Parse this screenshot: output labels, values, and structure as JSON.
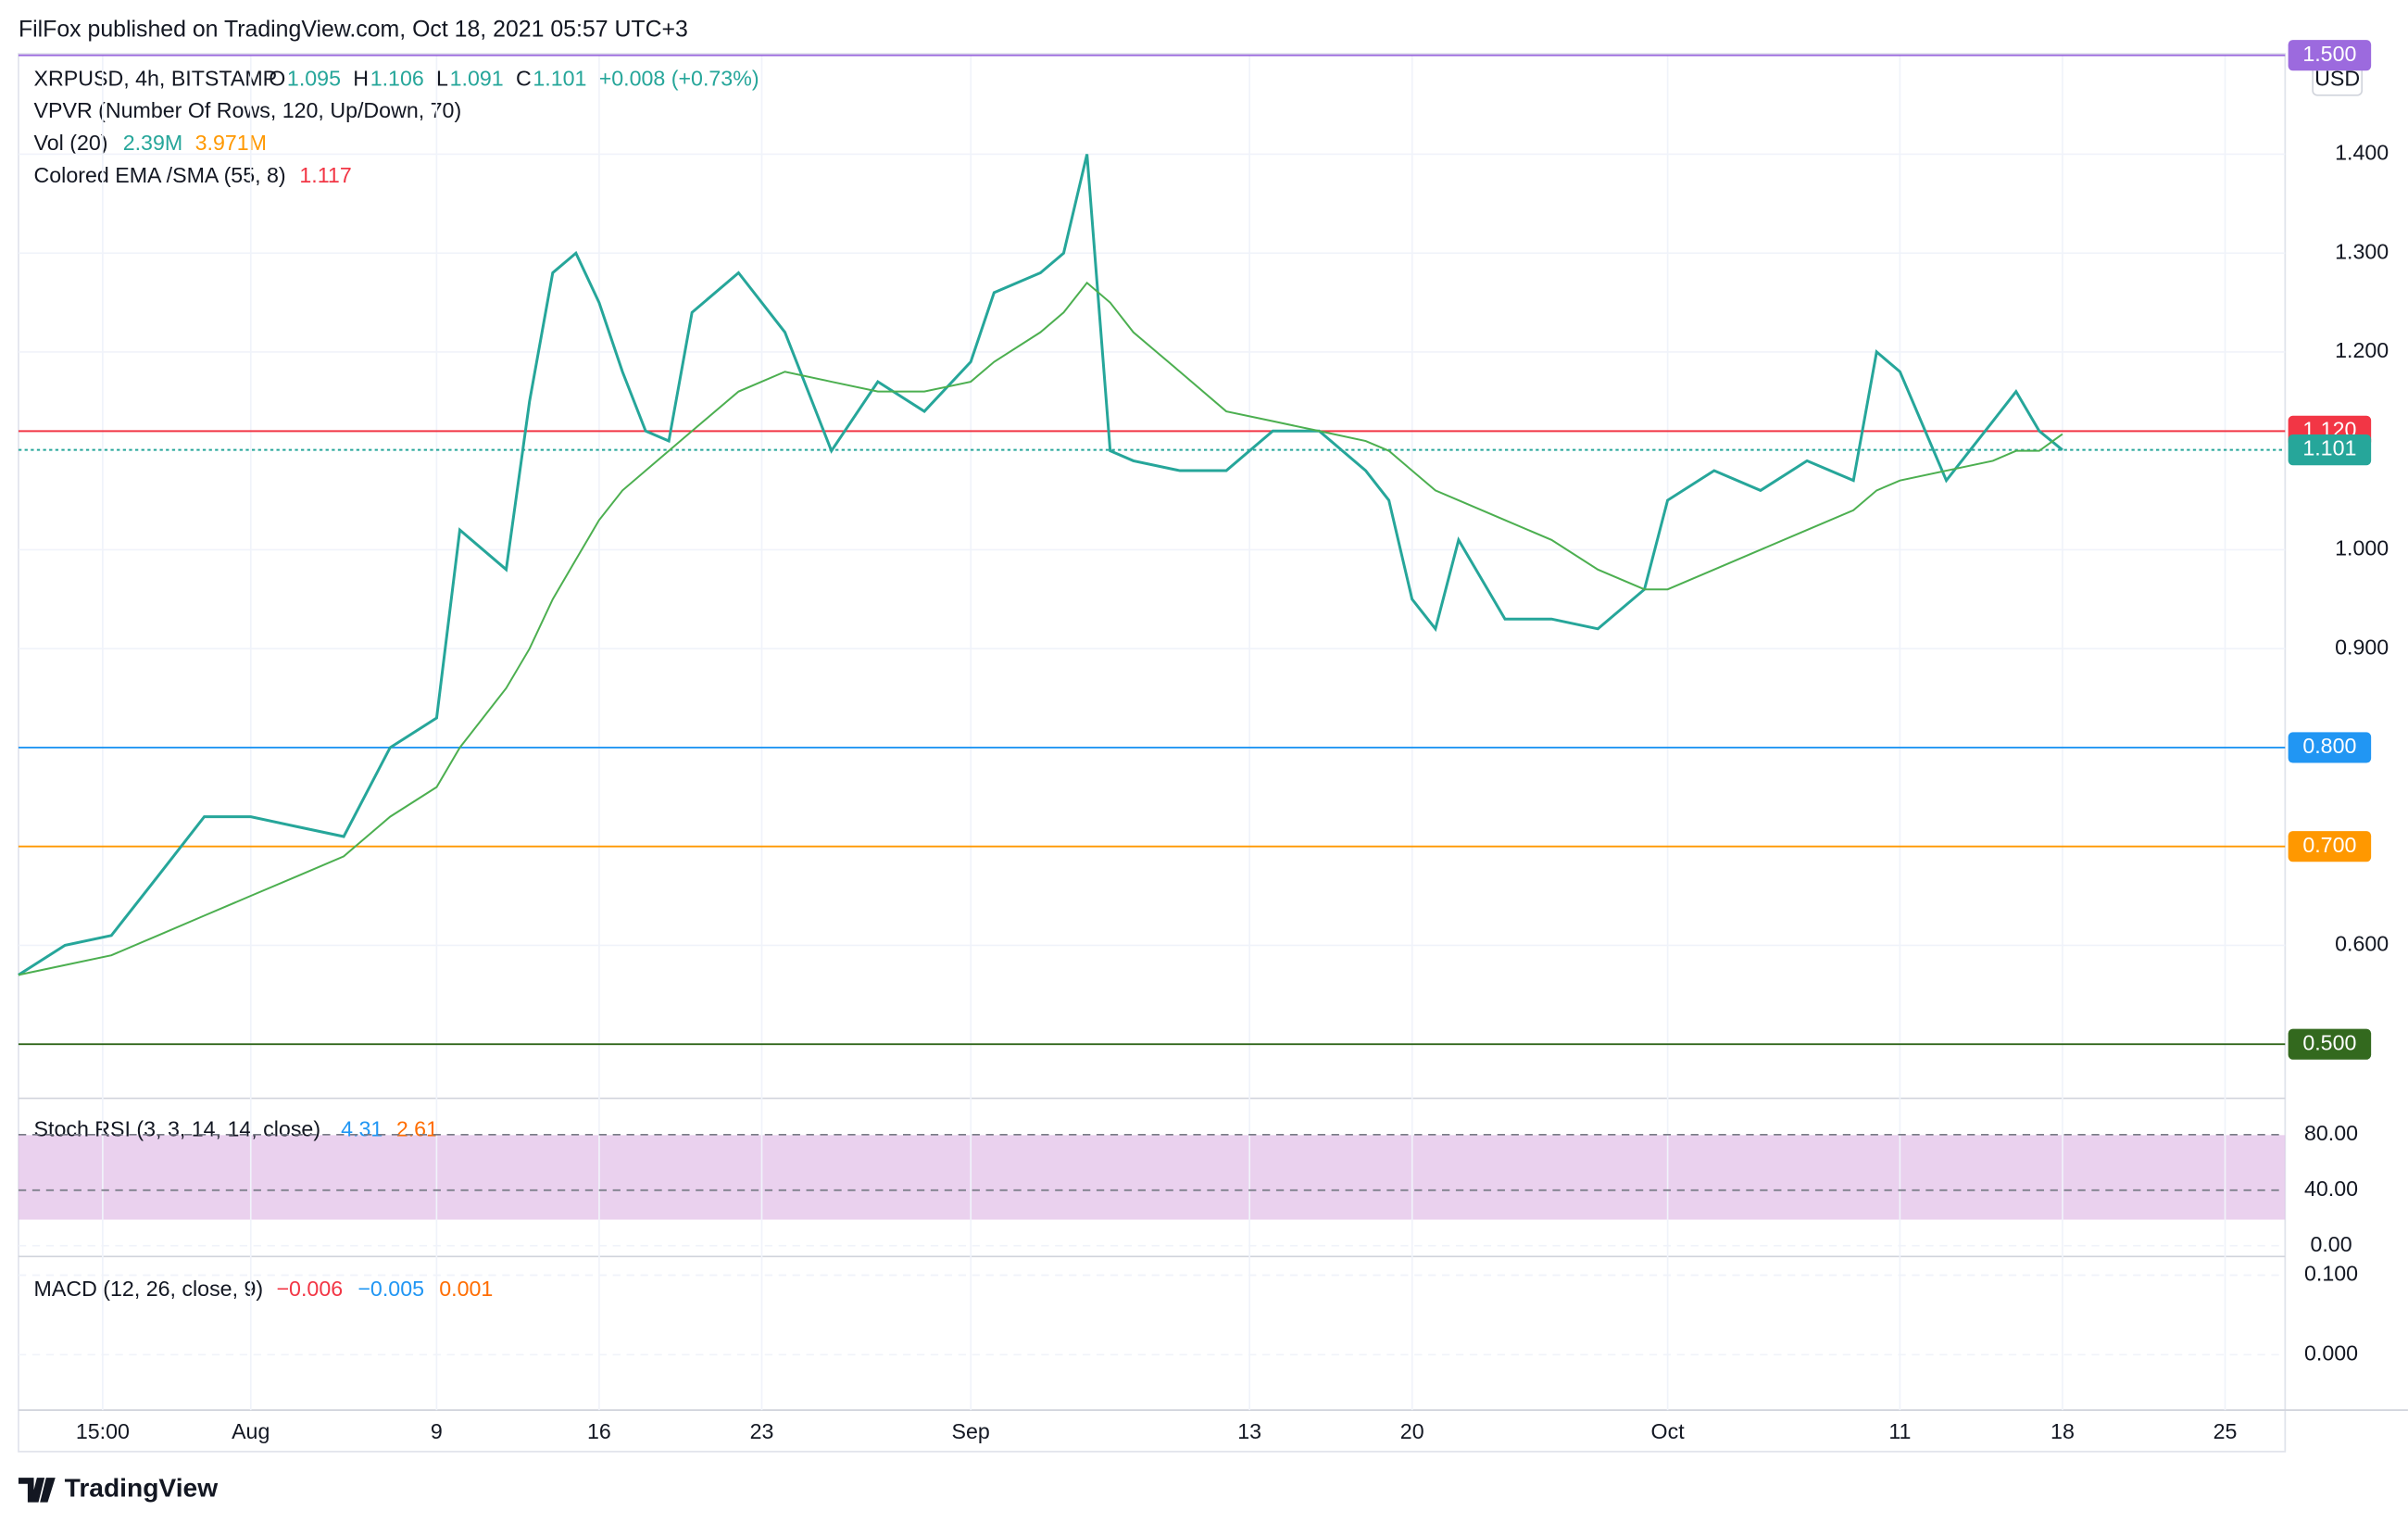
{
  "header": {
    "published": "FilFox published on TradingView.com, Oct 18, 2021 05:57 UTC+3"
  },
  "legend": {
    "symbol": "XRPUSD, 4h, BITSTAMP",
    "ohlc": [
      {
        "key": "O",
        "value": "1.095"
      },
      {
        "key": "H",
        "value": "1.106"
      },
      {
        "key": "L",
        "value": "1.091"
      },
      {
        "key": "C",
        "value": "1.101"
      }
    ],
    "change": "+0.008 (+0.73%)",
    "vpvr": "VPVR (Number Of Rows, 120, Up/Down, 70)",
    "vol": "Vol (20)",
    "vol_values": [
      "2.39M",
      "3.971M"
    ],
    "ema": "Colored EMA /SMA (55, 8)",
    "ema_value": "1.117"
  },
  "currency": "USD",
  "footer": "TradingView",
  "chart_data": {
    "type": "line",
    "x": [
      "2021-07-22",
      "2021-07-24",
      "2021-07-26",
      "2021-07-28",
      "2021-07-30",
      "2021-08-01",
      "2021-08-03",
      "2021-08-05",
      "2021-08-07",
      "2021-08-09",
      "2021-08-10",
      "2021-08-12",
      "2021-08-13",
      "2021-08-14",
      "2021-08-15",
      "2021-08-16",
      "2021-08-17",
      "2021-08-18",
      "2021-08-19",
      "2021-08-20",
      "2021-08-22",
      "2021-08-24",
      "2021-08-26",
      "2021-08-28",
      "2021-08-30",
      "2021-09-01",
      "2021-09-02",
      "2021-09-04",
      "2021-09-05",
      "2021-09-06",
      "2021-09-07",
      "2021-09-08",
      "2021-09-10",
      "2021-09-12",
      "2021-09-14",
      "2021-09-16",
      "2021-09-18",
      "2021-09-19",
      "2021-09-20",
      "2021-09-21",
      "2021-09-22",
      "2021-09-24",
      "2021-09-26",
      "2021-09-28",
      "2021-09-30",
      "2021-10-01",
      "2021-10-03",
      "2021-10-05",
      "2021-10-07",
      "2021-10-09",
      "2021-10-10",
      "2021-10-11",
      "2021-10-13",
      "2021-10-15",
      "2021-10-16",
      "2021-10-17",
      "2021-10-18"
    ],
    "series": [
      {
        "name": "XRPUSD",
        "color": "#26a69a",
        "values": [
          0.57,
          0.6,
          0.61,
          0.67,
          0.73,
          0.73,
          0.72,
          0.71,
          0.8,
          0.83,
          1.02,
          0.98,
          1.15,
          1.28,
          1.3,
          1.25,
          1.18,
          1.12,
          1.11,
          1.24,
          1.28,
          1.22,
          1.1,
          1.17,
          1.14,
          1.19,
          1.26,
          1.28,
          1.3,
          1.4,
          1.1,
          1.09,
          1.08,
          1.08,
          1.12,
          1.12,
          1.08,
          1.05,
          0.95,
          0.92,
          1.01,
          0.93,
          0.93,
          0.92,
          0.96,
          1.05,
          1.08,
          1.06,
          1.09,
          1.07,
          1.2,
          1.18,
          1.07,
          1.13,
          1.16,
          1.12,
          1.101
        ]
      },
      {
        "name": "Colored EMA /SMA (55, 8)",
        "color": "#4caf50",
        "values": [
          0.57,
          0.58,
          0.59,
          0.61,
          0.63,
          0.65,
          0.67,
          0.69,
          0.73,
          0.76,
          0.8,
          0.86,
          0.9,
          0.95,
          0.99,
          1.03,
          1.06,
          1.08,
          1.1,
          1.12,
          1.16,
          1.18,
          1.17,
          1.16,
          1.16,
          1.17,
          1.19,
          1.22,
          1.24,
          1.27,
          1.25,
          1.22,
          1.18,
          1.14,
          1.13,
          1.12,
          1.11,
          1.1,
          1.08,
          1.06,
          1.05,
          1.03,
          1.01,
          0.98,
          0.96,
          0.96,
          0.98,
          1.0,
          1.02,
          1.04,
          1.06,
          1.07,
          1.08,
          1.09,
          1.1,
          1.1,
          1.117
        ]
      }
    ],
    "xlim": [
      "2021-07-22T00:00",
      "2021-10-27T14:00"
    ],
    "xticks": [
      {
        "value": "2021-07-25T15:00",
        "label": "15:00"
      },
      {
        "value": "2021-08-01T00:00",
        "label": "Aug"
      },
      {
        "value": "2021-08-09T00:00",
        "label": "9"
      },
      {
        "value": "2021-08-16T00:00",
        "label": "16"
      },
      {
        "value": "2021-08-23T00:00",
        "label": "23"
      },
      {
        "value": "2021-09-01T00:00",
        "label": "Sep"
      },
      {
        "value": "2021-09-13T00:00",
        "label": "13"
      },
      {
        "value": "2021-09-20T00:00",
        "label": "20"
      },
      {
        "value": "2021-10-01T00:00",
        "label": "Oct"
      },
      {
        "value": "2021-10-11T00:00",
        "label": "11"
      },
      {
        "value": "2021-10-18T00:00",
        "label": "18"
      },
      {
        "value": "2021-10-25T00:00",
        "label": "25"
      }
    ],
    "ylim": [
      0.45,
      1.5
    ],
    "yticks": [
      {
        "value": 1.4,
        "label": "1.400"
      },
      {
        "value": 1.3,
        "label": "1.300"
      },
      {
        "value": 1.2,
        "label": "1.200"
      },
      {
        "value": 1.0,
        "label": "1.000"
      },
      {
        "value": 0.9,
        "label": "0.900"
      },
      {
        "value": 0.6,
        "label": "0.600"
      }
    ],
    "levels": [
      {
        "value": 1.5,
        "label": "1.500",
        "color": "#9c6ade"
      },
      {
        "value": 1.12,
        "label": "1.120",
        "color": "#f23645"
      },
      {
        "value": 1.101,
        "label": "1.101",
        "color": "#26a69a"
      },
      {
        "value": 0.8,
        "label": "0.800",
        "color": "#2196f3"
      },
      {
        "value": 0.7,
        "label": "0.700",
        "color": "#ff9800"
      },
      {
        "value": 0.5,
        "label": "0.500",
        "color": "#33691e"
      }
    ],
    "grid": true,
    "stoch_rsi": {
      "title": "Stoch RSI (3, 3, 14, 14, close)",
      "values": [
        "4.31",
        "2.61"
      ],
      "ylim": [
        0,
        100
      ],
      "yticks": [
        {
          "value": 80,
          "label": "80.00"
        },
        {
          "value": 40,
          "label": "40.00"
        },
        {
          "value": 0,
          "label": "0.00"
        }
      ]
    },
    "macd": {
      "title": "MACD (12, 26, close, 9)",
      "values": [
        "−0.006",
        "−0.005",
        "0.001"
      ],
      "ylim": [
        -0.06,
        0.11
      ],
      "yticks": [
        {
          "value": 0.1,
          "label": "0.100"
        },
        {
          "value": 0,
          "label": "0.000"
        }
      ]
    }
  }
}
